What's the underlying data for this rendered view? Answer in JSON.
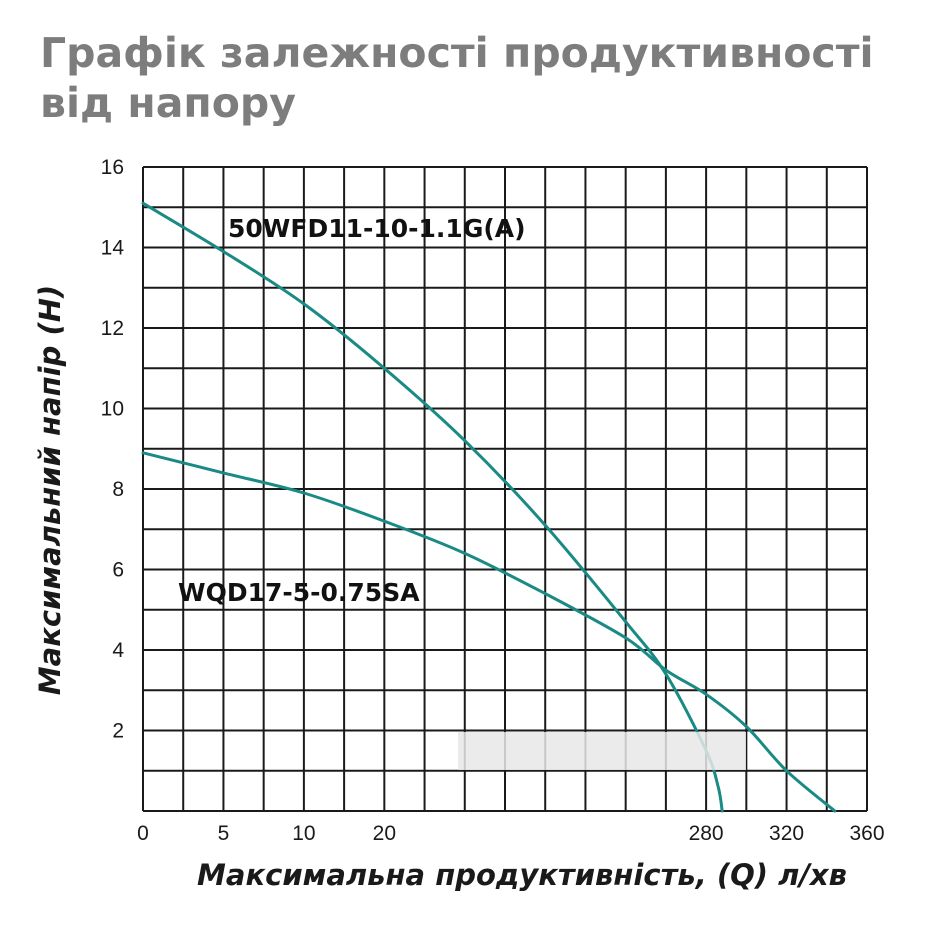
{
  "chart_data": {
    "type": "line",
    "title": "Графік залежності продуктивності від напору",
    "xlabel": "Максимальна продуктивність, (Q) л/хв",
    "ylabel": "Максимальний напір (H)",
    "x_ticks": [
      {
        "label": "0",
        "pos": 0
      },
      {
        "label": "5",
        "pos": 2
      },
      {
        "label": "10",
        "pos": 4
      },
      {
        "label": "20",
        "pos": 6
      },
      {
        "label": "280",
        "pos": 14
      },
      {
        "label": "320",
        "pos": 16
      },
      {
        "label": "360",
        "pos": 18
      }
    ],
    "y_ticks": [
      "16",
      "14",
      "12",
      "10",
      "8",
      "6",
      "4",
      "2"
    ],
    "ylim": [
      0,
      16
    ],
    "grid": true,
    "series": [
      {
        "name": "50WFD11-10-1.1G(A)",
        "color": "#1a8a85",
        "points": [
          [
            0,
            15.1
          ],
          [
            2,
            13.9
          ],
          [
            4,
            12.6
          ],
          [
            6,
            11.0
          ],
          [
            8,
            9.2
          ],
          [
            10,
            7.1
          ],
          [
            12,
            4.7
          ],
          [
            13,
            3.4
          ],
          [
            14,
            1.5
          ],
          [
            14.3,
            0.6
          ],
          [
            14.4,
            0
          ]
        ]
      },
      {
        "name": "WQD17-5-0.75SA",
        "color": "#1a8a85",
        "points": [
          [
            0,
            8.9
          ],
          [
            2,
            8.4
          ],
          [
            4,
            7.9
          ],
          [
            6,
            7.2
          ],
          [
            8,
            6.4
          ],
          [
            10,
            5.4
          ],
          [
            12,
            4.3
          ],
          [
            13,
            3.5
          ],
          [
            14,
            2.9
          ],
          [
            15,
            2.1
          ],
          [
            16,
            1.0
          ],
          [
            17.2,
            0
          ]
        ]
      }
    ]
  }
}
